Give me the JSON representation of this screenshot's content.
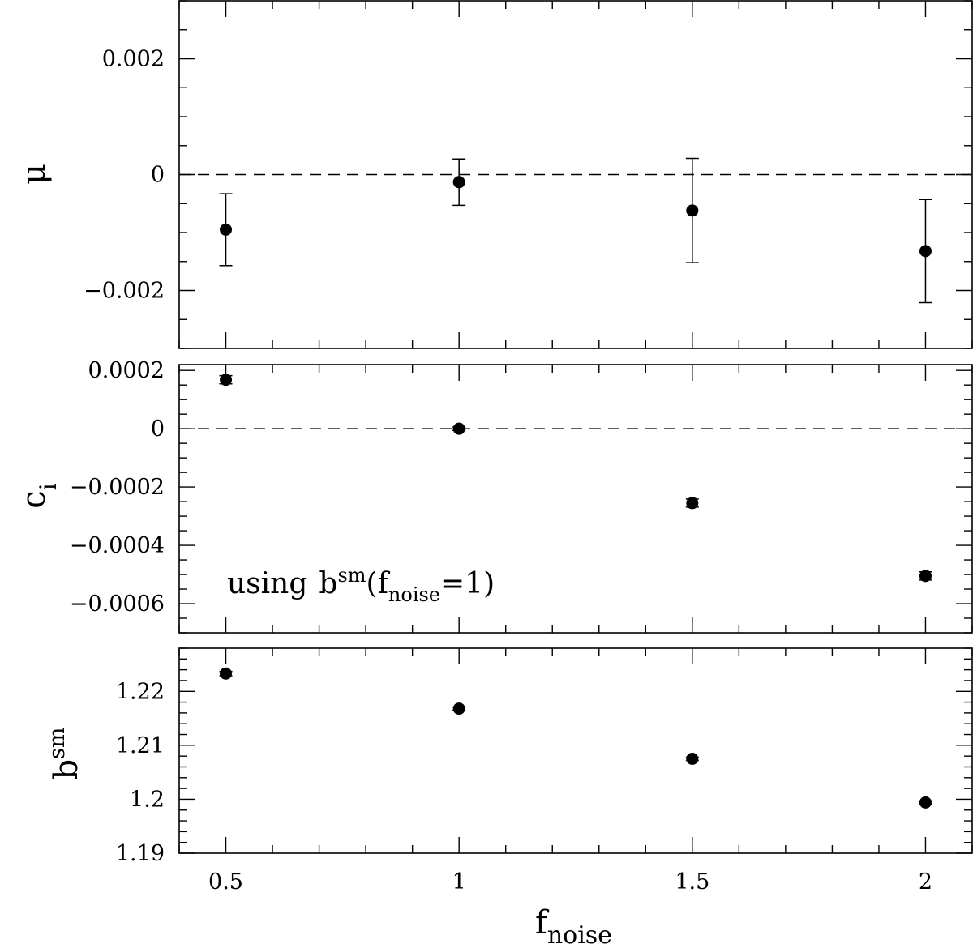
{
  "chart_data": [
    {
      "type": "scatter",
      "ylabel": "μ",
      "xlim": [
        0.4,
        2.1
      ],
      "ylim": [
        -0.003,
        0.003
      ],
      "xticks": [
        0.5,
        1,
        1.5,
        2
      ],
      "yticks": [
        -0.002,
        0,
        0.002
      ],
      "ytick_labels": [
        "−0.002",
        "0",
        "0.002"
      ],
      "reference_line": 0,
      "series": [
        {
          "x": [
            0.5,
            1,
            1.5,
            2
          ],
          "y": [
            -0.00095,
            -0.00013,
            -0.00062,
            -0.00132
          ],
          "err": [
            0.00062,
            0.0004,
            0.0009,
            0.00089
          ]
        }
      ]
    },
    {
      "type": "scatter",
      "ylabel": "c",
      "ylabel_sub": "i",
      "xlim": [
        0.4,
        2.1
      ],
      "ylim": [
        -0.0007,
        0.00022
      ],
      "xticks": [
        0.5,
        1,
        1.5,
        2
      ],
      "yticks": [
        -0.0006,
        -0.0004,
        -0.0002,
        0,
        0.0002
      ],
      "ytick_labels": [
        "−0.0006",
        "−0.0004",
        "−0.0002",
        "0",
        "0.0002"
      ],
      "reference_line": 0,
      "annotation": {
        "prefix": "using",
        "b": "b",
        "sup": "sm",
        "open": "(f",
        "sub": "noise",
        "close": "=1)"
      },
      "series": [
        {
          "x": [
            0.5,
            1,
            1.5,
            2
          ],
          "y": [
            0.000168,
            0.0,
            -0.000255,
            -0.000505
          ],
          "err": [
            1.4e-05,
            6e-06,
            1.4e-05,
            1.4e-05
          ]
        }
      ]
    },
    {
      "type": "scatter",
      "ylabel": "b",
      "ylabel_sup": "sm",
      "xlabel": "f",
      "xlabel_sub": "noise",
      "xlim": [
        0.4,
        2.1
      ],
      "ylim": [
        1.19,
        1.228
      ],
      "xticks": [
        0.5,
        1,
        1.5,
        2
      ],
      "xtick_labels": [
        "0.5",
        "1",
        "1.5",
        "2"
      ],
      "yticks": [
        1.19,
        1.2,
        1.21,
        1.22
      ],
      "ytick_labels": [
        "1.19",
        "1.2",
        "1.21",
        "1.22"
      ],
      "series": [
        {
          "x": [
            0.5,
            1,
            1.5,
            2
          ],
          "y": [
            1.2233,
            1.2168,
            1.2075,
            1.1994
          ],
          "err": [
            0.0004,
            0.0003,
            0.0003,
            0.0003
          ]
        }
      ]
    }
  ]
}
